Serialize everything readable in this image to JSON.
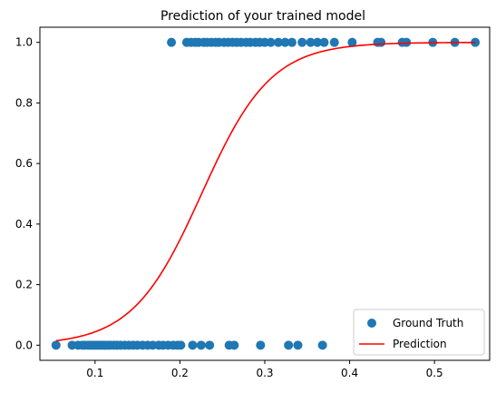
{
  "chart_data": {
    "type": "scatter",
    "title": "Prediction of your trained model",
    "xlabel": "",
    "ylabel": "",
    "xlim": [
      0.035,
      0.565
    ],
    "ylim": [
      -0.05,
      1.05
    ],
    "x_ticks": [
      "0.1",
      "0.2",
      "0.3",
      "0.4",
      "0.5"
    ],
    "x_tick_values": [
      0.1,
      0.2,
      0.3,
      0.4,
      0.5
    ],
    "y_ticks": [
      "0.0",
      "0.2",
      "0.4",
      "0.6",
      "0.8",
      "1.0"
    ],
    "y_tick_values": [
      0.0,
      0.2,
      0.4,
      0.6,
      0.8,
      1.0
    ],
    "grid": false,
    "legend_position": "lower-right",
    "series": [
      {
        "name": "Ground Truth",
        "kind": "scatter",
        "color": "#1f77b4",
        "points": [
          [
            0.054,
            0
          ],
          [
            0.073,
            0
          ],
          [
            0.08,
            0
          ],
          [
            0.085,
            0
          ],
          [
            0.088,
            0
          ],
          [
            0.092,
            0
          ],
          [
            0.095,
            0
          ],
          [
            0.098,
            0
          ],
          [
            0.101,
            0
          ],
          [
            0.104,
            0
          ],
          [
            0.107,
            0
          ],
          [
            0.11,
            0
          ],
          [
            0.112,
            0
          ],
          [
            0.115,
            0
          ],
          [
            0.118,
            0
          ],
          [
            0.122,
            0
          ],
          [
            0.126,
            0
          ],
          [
            0.13,
            0
          ],
          [
            0.135,
            0
          ],
          [
            0.14,
            0
          ],
          [
            0.145,
            0
          ],
          [
            0.15,
            0
          ],
          [
            0.156,
            0
          ],
          [
            0.162,
            0
          ],
          [
            0.168,
            0
          ],
          [
            0.175,
            0
          ],
          [
            0.18,
            0
          ],
          [
            0.186,
            0
          ],
          [
            0.192,
            0
          ],
          [
            0.197,
            0
          ],
          [
            0.201,
            0
          ],
          [
            0.215,
            0
          ],
          [
            0.225,
            0
          ],
          [
            0.235,
            0
          ],
          [
            0.258,
            0
          ],
          [
            0.264,
            0
          ],
          [
            0.295,
            0
          ],
          [
            0.328,
            0
          ],
          [
            0.339,
            0
          ],
          [
            0.368,
            0
          ],
          [
            0.19,
            1
          ],
          [
            0.208,
            1
          ],
          [
            0.213,
            1
          ],
          [
            0.218,
            1
          ],
          [
            0.222,
            1
          ],
          [
            0.228,
            1
          ],
          [
            0.232,
            1
          ],
          [
            0.237,
            1
          ],
          [
            0.242,
            1
          ],
          [
            0.246,
            1
          ],
          [
            0.252,
            1
          ],
          [
            0.257,
            1
          ],
          [
            0.262,
            1
          ],
          [
            0.267,
            1
          ],
          [
            0.272,
            1
          ],
          [
            0.278,
            1
          ],
          [
            0.283,
            1
          ],
          [
            0.289,
            1
          ],
          [
            0.294,
            1
          ],
          [
            0.3,
            1
          ],
          [
            0.307,
            1
          ],
          [
            0.316,
            1
          ],
          [
            0.324,
            1
          ],
          [
            0.332,
            1
          ],
          [
            0.344,
            1
          ],
          [
            0.354,
            1
          ],
          [
            0.362,
            1
          ],
          [
            0.37,
            1
          ],
          [
            0.382,
            1
          ],
          [
            0.403,
            1
          ],
          [
            0.433,
            1
          ],
          [
            0.437,
            1
          ],
          [
            0.462,
            1
          ],
          [
            0.467,
            1
          ],
          [
            0.498,
            1
          ],
          [
            0.524,
            1
          ],
          [
            0.548,
            1
          ]
        ]
      },
      {
        "name": "Prediction",
        "kind": "line",
        "color": "#ff0000",
        "x_range": [
          0.054,
          0.548
        ],
        "points_sample": [
          [
            0.054,
            0.019
          ],
          [
            0.1,
            0.067
          ],
          [
            0.15,
            0.2
          ],
          [
            0.2,
            0.44
          ],
          [
            0.25,
            0.67
          ],
          [
            0.3,
            0.87
          ],
          [
            0.35,
            0.94
          ],
          [
            0.4,
            0.98
          ],
          [
            0.45,
            0.993
          ],
          [
            0.5,
            0.998
          ],
          [
            0.548,
            0.999
          ]
        ]
      }
    ]
  }
}
